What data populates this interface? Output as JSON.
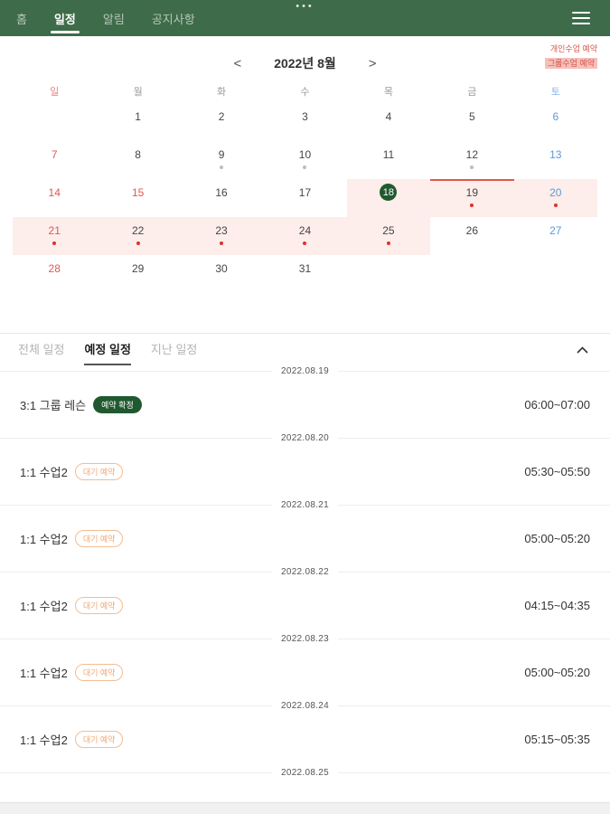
{
  "nav": {
    "status_dots": "•••",
    "tabs": [
      {
        "label": "홈",
        "active": false
      },
      {
        "label": "일정",
        "active": true
      },
      {
        "label": "알림",
        "active": false
      },
      {
        "label": "공지사항",
        "active": false
      }
    ]
  },
  "calendar": {
    "title": "2022년 8월",
    "prev_label": "<",
    "next_label": ">",
    "legend": [
      {
        "label": "개인수업 예약",
        "highlight": false
      },
      {
        "label": "그룹수업 예약",
        "highlight": true
      }
    ],
    "weekdays": [
      {
        "label": "일",
        "c": "red"
      },
      {
        "label": "월",
        "c": ""
      },
      {
        "label": "화",
        "c": ""
      },
      {
        "label": "수",
        "c": ""
      },
      {
        "label": "목",
        "c": ""
      },
      {
        "label": "금",
        "c": ""
      },
      {
        "label": "토",
        "c": "blue"
      }
    ],
    "weeks": [
      [
        {
          "d": ""
        },
        {
          "d": "1"
        },
        {
          "d": "2"
        },
        {
          "d": "3"
        },
        {
          "d": "4"
        },
        {
          "d": "5"
        },
        {
          "d": "6",
          "c": "blue"
        }
      ],
      [
        {
          "d": "7",
          "c": "red"
        },
        {
          "d": "8"
        },
        {
          "d": "9",
          "dot": "grey"
        },
        {
          "d": "10",
          "dot": "grey"
        },
        {
          "d": "11"
        },
        {
          "d": "12",
          "dot": "grey"
        },
        {
          "d": "13",
          "c": "blue"
        }
      ],
      [
        {
          "d": "14",
          "c": "red"
        },
        {
          "d": "15",
          "c": "red"
        },
        {
          "d": "16"
        },
        {
          "d": "17"
        },
        {
          "d": "18",
          "selected": true,
          "pink": true
        },
        {
          "d": "19",
          "dot": "red",
          "pink": true,
          "topline": true
        },
        {
          "d": "20",
          "c": "blue",
          "dot": "red",
          "pink": true
        }
      ],
      [
        {
          "d": "21",
          "c": "red",
          "dot": "red",
          "pink": true
        },
        {
          "d": "22",
          "dot": "red",
          "pink": true
        },
        {
          "d": "23",
          "dot": "red",
          "pink": true
        },
        {
          "d": "24",
          "dot": "red",
          "pink": true
        },
        {
          "d": "25",
          "dot": "red",
          "pink": true
        },
        {
          "d": "26"
        },
        {
          "d": "27",
          "c": "blue"
        }
      ],
      [
        {
          "d": "28",
          "c": "red"
        },
        {
          "d": "29"
        },
        {
          "d": "30"
        },
        {
          "d": "31"
        },
        {
          "d": ""
        },
        {
          "d": ""
        },
        {
          "d": ""
        }
      ]
    ]
  },
  "schedule": {
    "tabs": [
      {
        "label": "전체 일정",
        "active": false
      },
      {
        "label": "예정 일정",
        "active": true
      },
      {
        "label": "지난 일정",
        "active": false
      }
    ],
    "groups": [
      {
        "date": "2022.08.19",
        "items": [
          {
            "title": "3:1 그룹 레슨",
            "badge": "예약 확정",
            "badge_type": "confirmed",
            "time": "06:00~07:00"
          }
        ]
      },
      {
        "date": "2022.08.20",
        "items": [
          {
            "title": "1:1 수업2",
            "badge": "대기 예약",
            "badge_type": "pending",
            "time": "05:30~05:50"
          }
        ]
      },
      {
        "date": "2022.08.21",
        "items": [
          {
            "title": "1:1 수업2",
            "badge": "대기 예약",
            "badge_type": "pending",
            "time": "05:00~05:20"
          }
        ]
      },
      {
        "date": "2022.08.22",
        "items": [
          {
            "title": "1:1 수업2",
            "badge": "대기 예약",
            "badge_type": "pending",
            "time": "04:15~04:35"
          }
        ]
      },
      {
        "date": "2022.08.23",
        "items": [
          {
            "title": "1:1 수업2",
            "badge": "대기 예약",
            "badge_type": "pending",
            "time": "05:00~05:20"
          }
        ]
      },
      {
        "date": "2022.08.24",
        "items": [
          {
            "title": "1:1 수업2",
            "badge": "대기 예약",
            "badge_type": "pending",
            "time": "05:15~05:35"
          }
        ]
      },
      {
        "date": "2022.08.25",
        "items": []
      }
    ]
  },
  "colors": {
    "nav_green": "#3e6b49",
    "deep_green": "#20592f",
    "pink_cell": "#fdedeb",
    "legend_pink": "#f5c0ba",
    "red_text": "#e2574d",
    "red_dot": "#e0302a",
    "grey_dot": "#c2bab8",
    "blue_text": "#5b9bd8",
    "orange_badge": "#f0a873"
  }
}
